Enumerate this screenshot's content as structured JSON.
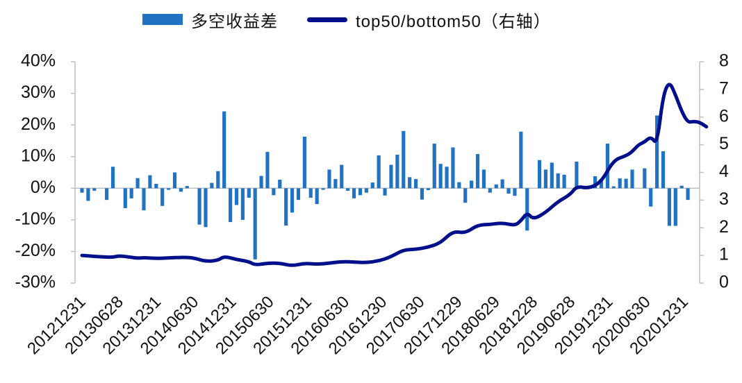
{
  "legend": {
    "bar_label": "多空收益差",
    "line_label": "top50/bottom50（右轴）"
  },
  "colors": {
    "bar": "#1f72c4",
    "line": "#000f8a",
    "axis": "#bfbfbf"
  },
  "chart_data": {
    "type": "bar",
    "title": "",
    "xlabel": "",
    "ylabel": "",
    "ylim": [
      -0.3,
      0.4
    ],
    "y2lim": [
      0,
      8
    ],
    "yticks": [
      "40%",
      "30%",
      "20%",
      "10%",
      "0%",
      "-10%",
      "-20%",
      "-30%"
    ],
    "y2ticks": [
      "8",
      "7",
      "6",
      "5",
      "4",
      "3",
      "2",
      "1",
      "0"
    ],
    "xticks": [
      "20121231",
      "20130628",
      "20131231",
      "20140630",
      "20141231",
      "20150630",
      "20151231",
      "20160630",
      "20161230",
      "20170630",
      "20171229",
      "20180629",
      "20181228",
      "20190628",
      "20191231",
      "20200630",
      "20201231"
    ],
    "series": [
      {
        "name": "多空收益差",
        "kind": "bar",
        "axis": "left",
        "values": [
          -0.014,
          -0.04,
          -0.008,
          0.0,
          -0.037,
          0.068,
          0.0,
          -0.063,
          -0.032,
          0.032,
          -0.07,
          0.041,
          0.014,
          -0.056,
          -0.005,
          0.05,
          -0.011,
          0.007,
          0.0,
          -0.115,
          -0.123,
          0.017,
          0.054,
          0.243,
          -0.107,
          -0.053,
          -0.1,
          -0.03,
          -0.225,
          0.039,
          0.115,
          -0.022,
          0.027,
          -0.118,
          -0.077,
          -0.037,
          0.163,
          -0.03,
          -0.05,
          -0.005,
          0.059,
          0.029,
          0.074,
          -0.008,
          -0.032,
          -0.022,
          -0.014,
          0.018,
          0.104,
          -0.023,
          0.074,
          0.106,
          0.181,
          0.035,
          0.029,
          -0.036,
          -0.006,
          0.141,
          0.077,
          0.068,
          0.129,
          0.019,
          -0.046,
          0.024,
          0.108,
          0.059,
          -0.014,
          0.012,
          0.028,
          -0.017,
          -0.024,
          0.179,
          -0.134,
          0.0,
          0.089,
          0.059,
          0.081,
          0.047,
          0.043,
          0.0,
          0.084,
          0.0,
          0.0,
          0.038,
          0.026,
          0.141,
          0.006,
          0.031,
          0.03,
          0.059,
          0.0,
          0.063,
          -0.058,
          0.23,
          0.117,
          -0.119,
          -0.119,
          0.008,
          -0.037
        ]
      },
      {
        "name": "top50/bottom50（右轴）",
        "kind": "line",
        "axis": "right",
        "points": [
          [
            0,
            1.0
          ],
          [
            3,
            0.95
          ],
          [
            5,
            0.93
          ],
          [
            6,
            0.99
          ],
          [
            8,
            0.93
          ],
          [
            9,
            0.9
          ],
          [
            10,
            0.92
          ],
          [
            12,
            0.89
          ],
          [
            14,
            0.91
          ],
          [
            16,
            0.93
          ],
          [
            18,
            0.92
          ],
          [
            20,
            0.78
          ],
          [
            22,
            0.82
          ],
          [
            23,
            0.97
          ],
          [
            25,
            0.85
          ],
          [
            27,
            0.78
          ],
          [
            28,
            0.65
          ],
          [
            30,
            0.72
          ],
          [
            32,
            0.72
          ],
          [
            34,
            0.62
          ],
          [
            36,
            0.72
          ],
          [
            38,
            0.68
          ],
          [
            40,
            0.72
          ],
          [
            42,
            0.78
          ],
          [
            44,
            0.76
          ],
          [
            46,
            0.74
          ],
          [
            48,
            0.8
          ],
          [
            50,
            0.95
          ],
          [
            52,
            1.2
          ],
          [
            54,
            1.22
          ],
          [
            56,
            1.3
          ],
          [
            58,
            1.45
          ],
          [
            60,
            1.88
          ],
          [
            62,
            1.8
          ],
          [
            64,
            2.1
          ],
          [
            66,
            2.12
          ],
          [
            68,
            2.18
          ],
          [
            70,
            2.08
          ],
          [
            71,
            2.25
          ],
          [
            72,
            2.55
          ],
          [
            73,
            2.3
          ],
          [
            75,
            2.55
          ],
          [
            77,
            2.95
          ],
          [
            79,
            3.2
          ],
          [
            80,
            3.5
          ],
          [
            82,
            3.42
          ],
          [
            84,
            3.65
          ],
          [
            86,
            4.45
          ],
          [
            88,
            4.6
          ],
          [
            89,
            4.75
          ],
          [
            90,
            5.0
          ],
          [
            91,
            5.1
          ],
          [
            92,
            5.3
          ],
          [
            93,
            5.0
          ],
          [
            94,
            6.8
          ],
          [
            95,
            7.3
          ],
          [
            96,
            6.8
          ],
          [
            97,
            6.2
          ],
          [
            98,
            5.8
          ],
          [
            99,
            5.85
          ],
          [
            100,
            5.8
          ],
          [
            101,
            5.65
          ]
        ]
      }
    ]
  }
}
